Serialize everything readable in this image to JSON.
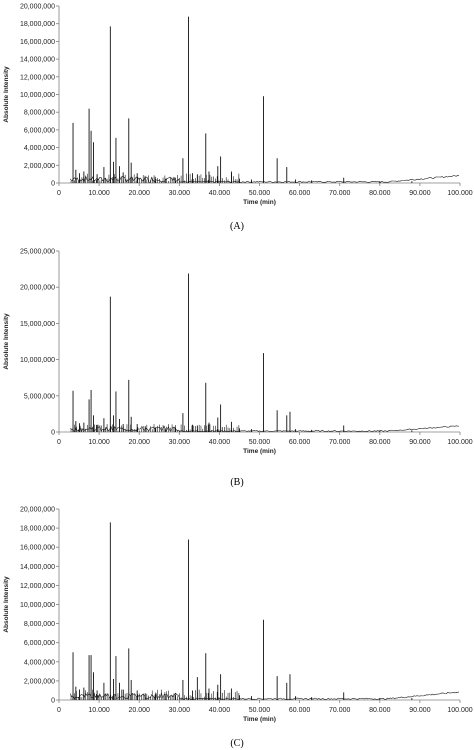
{
  "chart_data": [
    {
      "panel_label": "(A)",
      "type": "line",
      "xlabel": "Time (min)",
      "ylabel": "Absolute Intensity",
      "xlim": [
        0,
        100
      ],
      "ylim": [
        0,
        20000000
      ],
      "x_ticks": [
        "0",
        "10.000",
        "20.000",
        "30.000",
        "40.000",
        "50.000",
        "60.000",
        "70.000",
        "80.000",
        "90.000",
        "100.000"
      ],
      "y_ticks": [
        "0",
        "2,000,000",
        "4,000,000",
        "6,000,000",
        "8,000,000",
        "10,000,000",
        "12,000,000",
        "14,000,000",
        "16,000,000",
        "18,000,000",
        "20,000,000"
      ],
      "peaks": [
        [
          3.5,
          6800000
        ],
        [
          4.2,
          1500000
        ],
        [
          5.1,
          1100000
        ],
        [
          6.2,
          1300000
        ],
        [
          7.5,
          8400000
        ],
        [
          8.0,
          5900000
        ],
        [
          8.6,
          4600000
        ],
        [
          9.5,
          1000000
        ],
        [
          11.2,
          1800000
        ],
        [
          12.8,
          17700000
        ],
        [
          13.6,
          2400000
        ],
        [
          14.2,
          5100000
        ],
        [
          15.1,
          1900000
        ],
        [
          16.0,
          1200000
        ],
        [
          17.4,
          7300000
        ],
        [
          18.0,
          2300000
        ],
        [
          19.5,
          1100000
        ],
        [
          21.5,
          700000
        ],
        [
          24.0,
          700000
        ],
        [
          26.5,
          500000
        ],
        [
          29.0,
          600000
        ],
        [
          30.9,
          2800000
        ],
        [
          32.3,
          18800000
        ],
        [
          33.3,
          1100000
        ],
        [
          34.5,
          900000
        ],
        [
          36.6,
          5600000
        ],
        [
          37.4,
          1300000
        ],
        [
          39.6,
          1900000
        ],
        [
          40.3,
          3000000
        ],
        [
          43.0,
          1300000
        ],
        [
          45.0,
          500000
        ],
        [
          48.0,
          400000
        ],
        [
          51.0,
          9800000
        ],
        [
          54.4,
          2800000
        ],
        [
          56.8,
          1800000
        ],
        [
          59.0,
          400000
        ],
        [
          63.0,
          300000
        ],
        [
          71.0,
          600000
        ],
        [
          80.0,
          200000
        ],
        [
          88.0,
          200000
        ]
      ]
    },
    {
      "panel_label": "(B)",
      "type": "line",
      "xlabel": "Time (min)",
      "ylabel": "Absolute Intensity",
      "xlim": [
        0,
        100
      ],
      "ylim": [
        0,
        25000000
      ],
      "x_ticks": [
        "0",
        "10.000",
        "20.000",
        "30.000",
        "40.000",
        "50.000",
        "60.000",
        "70.000",
        "80.000",
        "90.000",
        "100.000"
      ],
      "y_ticks": [
        "0",
        "5,000,000",
        "10,000,000",
        "15,000,000",
        "20,000,000",
        "25,000,000"
      ],
      "peaks": [
        [
          3.5,
          5700000
        ],
        [
          4.2,
          1500000
        ],
        [
          5.1,
          1200000
        ],
        [
          6.2,
          1300000
        ],
        [
          7.5,
          4500000
        ],
        [
          8.0,
          5800000
        ],
        [
          8.6,
          2300000
        ],
        [
          9.5,
          1000000
        ],
        [
          11.2,
          1900000
        ],
        [
          12.8,
          18700000
        ],
        [
          13.6,
          2300000
        ],
        [
          14.2,
          5600000
        ],
        [
          15.1,
          1800000
        ],
        [
          16.0,
          1100000
        ],
        [
          17.4,
          7200000
        ],
        [
          18.0,
          2100000
        ],
        [
          19.5,
          1100000
        ],
        [
          21.5,
          800000
        ],
        [
          24.0,
          600000
        ],
        [
          26.5,
          500000
        ],
        [
          29.0,
          600000
        ],
        [
          30.9,
          2600000
        ],
        [
          32.3,
          21900000
        ],
        [
          33.3,
          1000000
        ],
        [
          34.5,
          900000
        ],
        [
          36.6,
          6800000
        ],
        [
          37.4,
          1300000
        ],
        [
          39.6,
          2000000
        ],
        [
          40.3,
          3800000
        ],
        [
          43.0,
          1400000
        ],
        [
          45.0,
          500000
        ],
        [
          48.0,
          400000
        ],
        [
          51.0,
          10900000
        ],
        [
          54.4,
          3000000
        ],
        [
          56.8,
          2300000
        ],
        [
          57.6,
          2800000
        ],
        [
          59.0,
          400000
        ],
        [
          63.0,
          300000
        ],
        [
          71.0,
          900000
        ],
        [
          80.0,
          200000
        ],
        [
          88.0,
          200000
        ]
      ]
    },
    {
      "panel_label": "(C)",
      "type": "line",
      "xlabel": "Time (min)",
      "ylabel": "Absolute Intensity",
      "xlim": [
        0,
        100
      ],
      "ylim": [
        0,
        20000000
      ],
      "x_ticks": [
        "0",
        "10.000",
        "20.000",
        "30.000",
        "40.000",
        "50.000",
        "60.000",
        "70.000",
        "80.000",
        "90.000",
        "100.000"
      ],
      "y_ticks": [
        "0",
        "2,000,000",
        "4,000,000",
        "6,000,000",
        "8,000,000",
        "10,000,000",
        "12,000,000",
        "14,000,000",
        "16,000,000",
        "18,000,000",
        "20,000,000"
      ],
      "peaks": [
        [
          3.5,
          5000000
        ],
        [
          4.2,
          1400000
        ],
        [
          5.1,
          1100000
        ],
        [
          6.2,
          1300000
        ],
        [
          7.5,
          4700000
        ],
        [
          8.0,
          4700000
        ],
        [
          8.6,
          2900000
        ],
        [
          9.5,
          1000000
        ],
        [
          11.2,
          1800000
        ],
        [
          12.8,
          18600000
        ],
        [
          13.6,
          2200000
        ],
        [
          14.2,
          4600000
        ],
        [
          15.1,
          1800000
        ],
        [
          16.0,
          1100000
        ],
        [
          17.4,
          5400000
        ],
        [
          18.0,
          2100000
        ],
        [
          19.5,
          1000000
        ],
        [
          21.5,
          700000
        ],
        [
          24.0,
          600000
        ],
        [
          26.5,
          500000
        ],
        [
          29.0,
          500000
        ],
        [
          30.9,
          2100000
        ],
        [
          32.3,
          16800000
        ],
        [
          33.3,
          1000000
        ],
        [
          34.5,
          2400000
        ],
        [
          36.6,
          4900000
        ],
        [
          37.4,
          1200000
        ],
        [
          39.6,
          1600000
        ],
        [
          40.3,
          2700000
        ],
        [
          43.0,
          1200000
        ],
        [
          45.0,
          500000
        ],
        [
          48.0,
          400000
        ],
        [
          51.0,
          8400000
        ],
        [
          54.4,
          2500000
        ],
        [
          56.8,
          1800000
        ],
        [
          57.6,
          2700000
        ],
        [
          59.0,
          400000
        ],
        [
          63.0,
          300000
        ],
        [
          71.0,
          800000
        ],
        [
          80.0,
          200000
        ],
        [
          88.0,
          200000
        ]
      ]
    }
  ]
}
